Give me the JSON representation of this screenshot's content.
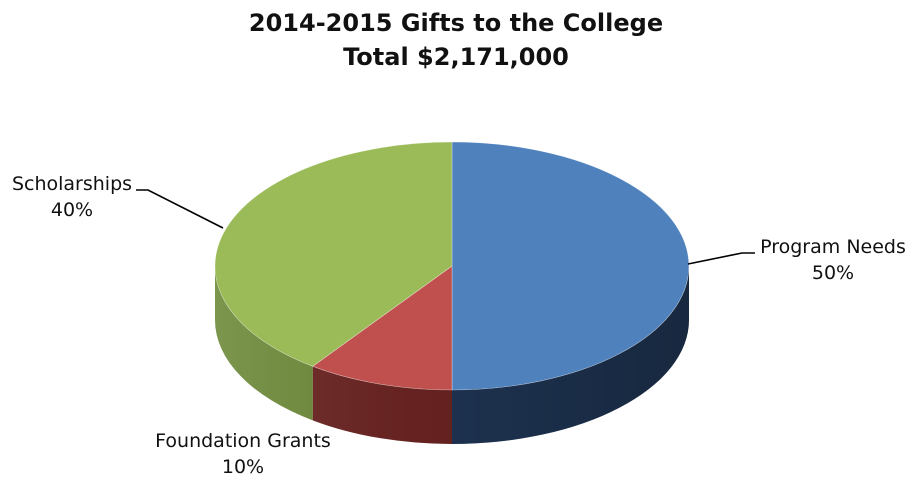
{
  "chart_data": {
    "type": "pie",
    "title": "2014-2015 Gifts to the College",
    "subtitle": "Total $2,171,000",
    "legend": "none",
    "slices": [
      {
        "label": "Program Needs",
        "value": 50,
        "pct_label": "50%",
        "color": "#4f81bd",
        "side_color": "#1f3554"
      },
      {
        "label": "Foundation Grants",
        "value": 10,
        "pct_label": "10%",
        "color": "#c0504d",
        "side_color": "#6a2321"
      },
      {
        "label": "Scholarships",
        "value": 40,
        "pct_label": "40%",
        "color": "#9bbb59",
        "side_color": "#6e8a3a"
      }
    ]
  }
}
